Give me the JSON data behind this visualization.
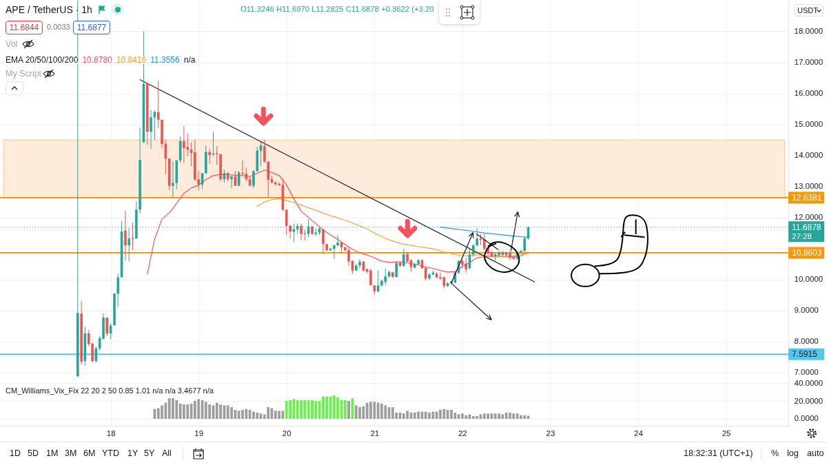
{
  "chart_data": [
    {
      "type": "candlestick",
      "title": "APE / TetherUS · 1h",
      "annotations": [
        "O11.3246 H11.6970 L11.2825 C11.6878 +0.3622 (+3.20",
        "11.6844",
        "0.0033",
        "11.6877",
        "Vol",
        "EMA 20/50/100/200",
        "10.8780",
        "10.8416",
        "11.3556",
        "n/a",
        "My Script",
        "USDT",
        "27:28"
      ],
      "x": [
        17.625,
        17.667,
        17.708,
        17.75,
        17.792,
        17.833,
        17.875,
        17.917,
        17.958,
        18,
        18.042,
        18.083,
        18.125,
        18.167,
        18.208,
        18.25,
        18.292,
        18.333,
        18.375,
        18.417,
        18.458,
        18.5,
        18.542,
        18.583,
        18.625,
        18.667,
        18.708,
        18.75,
        18.792,
        18.833,
        18.875,
        18.917,
        18.958,
        19,
        19.042,
        19.083,
        19.125,
        19.167,
        19.208,
        19.25,
        19.292,
        19.333,
        19.375,
        19.417,
        19.458,
        19.5,
        19.542,
        19.583,
        19.625,
        19.667,
        19.708,
        19.75,
        19.792,
        19.833,
        19.875,
        19.917,
        19.958,
        20,
        20.042,
        20.083,
        20.125,
        20.167,
        20.208,
        20.25,
        20.292,
        20.333,
        20.375,
        20.417,
        20.458,
        20.5,
        20.542,
        20.583,
        20.625,
        20.667,
        20.708,
        20.75,
        20.792,
        20.833,
        20.875,
        20.917,
        20.958,
        21,
        21.042,
        21.083,
        21.125,
        21.167,
        21.208,
        21.25,
        21.292,
        21.333,
        21.375,
        21.417,
        21.458,
        21.5,
        21.542,
        21.583,
        21.625,
        21.667,
        21.708,
        21.75,
        21.792,
        21.833,
        21.875,
        21.917,
        21.958,
        22,
        22.042,
        22.083,
        22.125,
        22.167,
        22.208,
        22.25,
        22.292,
        22.333,
        22.375,
        22.417,
        22.458,
        22.5,
        22.542,
        22.583,
        22.625,
        22.667,
        22.708,
        22.75
      ],
      "ohlc": [
        [
          6.88,
          19.0,
          6.86,
          8.92
        ],
        [
          8.9,
          9.31,
          7.26,
          7.35
        ],
        [
          7.37,
          8.48,
          7.22,
          8.26
        ],
        [
          8.26,
          8.37,
          7.85,
          7.92
        ],
        [
          7.94,
          7.95,
          7.32,
          7.37
        ],
        [
          7.37,
          7.85,
          7.32,
          7.78
        ],
        [
          7.78,
          8.18,
          7.7,
          8.11
        ],
        [
          8.09,
          8.9,
          8.07,
          8.77
        ],
        [
          8.77,
          8.77,
          8.18,
          8.26
        ],
        [
          8.26,
          8.59,
          8.07,
          8.52
        ],
        [
          8.52,
          9.55,
          8.52,
          9.55
        ],
        [
          9.54,
          10.19,
          9.11,
          10.07
        ],
        [
          10.07,
          11.88,
          10.07,
          11.55
        ],
        [
          11.58,
          12.21,
          10.61,
          11.1
        ],
        [
          11.1,
          11.66,
          10.58,
          11.32
        ],
        [
          11.34,
          11.84,
          10.95,
          11.31
        ],
        [
          11.32,
          12.51,
          11.32,
          12.25
        ],
        [
          12.25,
          14.89,
          12.14,
          13.85
        ],
        [
          14.43,
          18.0,
          14.39,
          16.31
        ],
        [
          16.31,
          16.35,
          14.35,
          14.76
        ],
        [
          14.76,
          15.46,
          14.21,
          15.23
        ],
        [
          15.23,
          15.46,
          14.5,
          15.4
        ],
        [
          15.4,
          16.4,
          14.87,
          15.15
        ],
        [
          15.15,
          15.15,
          14.24,
          14.37
        ],
        [
          14.37,
          14.5,
          13.39,
          13.9
        ],
        [
          13.9,
          13.9,
          12.88,
          13.02
        ],
        [
          13.02,
          13.8,
          12.65,
          13.11
        ],
        [
          13.11,
          13.84,
          12.91,
          13.84
        ],
        [
          13.84,
          14.61,
          13.76,
          14.46
        ],
        [
          14.46,
          14.94,
          13.76,
          14.24
        ],
        [
          14.27,
          14.72,
          13.98,
          14.19
        ],
        [
          14.19,
          14.42,
          13.65,
          14.08
        ],
        [
          14.1,
          14.5,
          13.17,
          13.23
        ],
        [
          13.23,
          13.5,
          12.88,
          13.06
        ],
        [
          13.06,
          13.43,
          12.91,
          13.43
        ],
        [
          13.43,
          14.32,
          13.39,
          14.11
        ],
        [
          14.11,
          14.21,
          13.74,
          14.01
        ],
        [
          14.03,
          14.76,
          13.98,
          14.06
        ],
        [
          14.07,
          14.3,
          13.69,
          14.04
        ],
        [
          14.04,
          14.04,
          13.17,
          13.23
        ],
        [
          13.23,
          13.54,
          13.13,
          13.43
        ],
        [
          13.43,
          13.47,
          13.17,
          13.23
        ],
        [
          13.23,
          13.36,
          12.95,
          13.32
        ],
        [
          13.32,
          13.5,
          13.02,
          13.02
        ],
        [
          13.02,
          13.5,
          13.02,
          13.45
        ],
        [
          13.44,
          13.84,
          13.36,
          13.41
        ],
        [
          13.41,
          13.61,
          13.17,
          13.23
        ],
        [
          13.23,
          13.32,
          13.02,
          13.02
        ],
        [
          13.02,
          13.54,
          12.95,
          13.49
        ],
        [
          13.49,
          14.28,
          13.46,
          14.15
        ],
        [
          14.15,
          14.43,
          13.65,
          14.32
        ],
        [
          14.3,
          14.5,
          13.76,
          13.8
        ],
        [
          13.8,
          13.8,
          12.65,
          13.21
        ],
        [
          13.23,
          13.34,
          13.1,
          13.13
        ],
        [
          13.13,
          13.17,
          13.02,
          13.07
        ],
        [
          13.08,
          13.13,
          13.02,
          13.04
        ],
        [
          13.05,
          13.25,
          12.21,
          12.25
        ],
        [
          12.25,
          12.25,
          11.43,
          11.73
        ],
        [
          11.73,
          11.77,
          11.32,
          11.54
        ],
        [
          11.54,
          11.8,
          11.19,
          11.62
        ],
        [
          11.62,
          11.8,
          11.47,
          11.73
        ],
        [
          11.73,
          11.8,
          11.26,
          11.47
        ],
        [
          11.49,
          11.62,
          11.26,
          11.47
        ],
        [
          11.47,
          11.95,
          11.36,
          11.71
        ],
        [
          11.71,
          11.73,
          11.43,
          11.47
        ],
        [
          11.47,
          11.64,
          11.4,
          11.51
        ],
        [
          11.51,
          11.68,
          11.43,
          11.64
        ],
        [
          11.62,
          11.64,
          10.82,
          11.14
        ],
        [
          11.14,
          11.14,
          10.92,
          10.94
        ],
        [
          10.94,
          11.03,
          10.92,
          10.99
        ],
        [
          10.99,
          11.12,
          10.66,
          11.1
        ],
        [
          11.1,
          11.43,
          11.07,
          11.19
        ],
        [
          11.19,
          11.21,
          10.84,
          11.04
        ],
        [
          11.04,
          11.06,
          10.92,
          10.94
        ],
        [
          10.95,
          11.06,
          10.44,
          10.58
        ],
        [
          10.6,
          10.62,
          10.18,
          10.29
        ],
        [
          10.29,
          10.51,
          10.29,
          10.45
        ],
        [
          10.45,
          10.66,
          10.36,
          10.57
        ],
        [
          10.58,
          10.58,
          10.25,
          10.29
        ],
        [
          10.33,
          10.36,
          10.21,
          10.25
        ],
        [
          10.29,
          10.36,
          9.81,
          9.81
        ],
        [
          9.81,
          9.81,
          9.51,
          9.62
        ],
        [
          9.62,
          10.29,
          9.59,
          9.81
        ],
        [
          9.81,
          10.0,
          9.77,
          9.96
        ],
        [
          9.92,
          10.36,
          9.81,
          10.1
        ],
        [
          10.1,
          10.29,
          10.07,
          10.25
        ],
        [
          10.23,
          10.25,
          10.07,
          10.08
        ],
        [
          10.08,
          10.58,
          10.07,
          10.53
        ],
        [
          10.53,
          10.58,
          10.42,
          10.44
        ],
        [
          10.44,
          10.99,
          10.4,
          10.81
        ],
        [
          10.82,
          10.88,
          10.55,
          10.58
        ],
        [
          10.62,
          10.66,
          10.25,
          10.4
        ],
        [
          10.38,
          10.55,
          10.36,
          10.5
        ],
        [
          10.5,
          10.67,
          10.45,
          10.62
        ],
        [
          10.62,
          10.66,
          10.35,
          10.36
        ],
        [
          10.38,
          10.38,
          9.96,
          10.03
        ],
        [
          10.03,
          10.2,
          9.98,
          10.16
        ],
        [
          10.16,
          10.29,
          10.14,
          10.22
        ],
        [
          10.19,
          10.25,
          10.03,
          10.07
        ],
        [
          10.08,
          10.22,
          9.99,
          10.03
        ],
        [
          10.07,
          10.1,
          9.71,
          9.79
        ],
        [
          9.79,
          9.92,
          9.76,
          9.88
        ],
        [
          9.88,
          9.96,
          9.85,
          9.94
        ],
        [
          9.9,
          10.25,
          9.88,
          10.22
        ],
        [
          10.22,
          10.62,
          10.18,
          10.6
        ],
        [
          10.6,
          10.66,
          10.36,
          10.47
        ],
        [
          10.51,
          10.7,
          10.22,
          10.33
        ],
        [
          10.37,
          11.03,
          10.33,
          10.81
        ],
        [
          10.81,
          11.14,
          10.73,
          11.1
        ],
        [
          11.1,
          11.66,
          11.07,
          11.32
        ],
        [
          11.32,
          11.47,
          11.1,
          11.28
        ],
        [
          11.29,
          11.47,
          10.95,
          10.99
        ],
        [
          11.03,
          11.1,
          10.75,
          10.84
        ],
        [
          10.88,
          10.92,
          10.73,
          10.75
        ],
        [
          10.76,
          10.88,
          10.58,
          10.81
        ],
        [
          10.78,
          10.92,
          10.75,
          10.87
        ],
        [
          10.87,
          10.92,
          10.73,
          10.79
        ],
        [
          10.78,
          10.9,
          10.76,
          10.87
        ],
        [
          10.87,
          10.92,
          10.62,
          10.7
        ],
        [
          10.73,
          10.75,
          10.62,
          10.67
        ],
        [
          10.67,
          10.88,
          10.62,
          10.87
        ],
        [
          10.87,
          10.96,
          10.84,
          10.92
        ],
        [
          10.92,
          11.4,
          10.88,
          11.3246
        ],
        [
          11.3246,
          11.697,
          11.2825,
          11.6878
        ]
      ],
      "colors": [
        "#26a69a",
        "#ef5350",
        "#26a69a",
        "#ef5350",
        "#ef5350",
        "#26a69a",
        "#26a69a",
        "#26a69a",
        "#ef5350",
        "#26a69a",
        "#26a69a",
        "#26a69a",
        "#26a69a",
        "#ef5350",
        "#26a69a",
        "#ef5350",
        "#26a69a",
        "#26a69a",
        "#26a69a",
        "#ef5350",
        "#26a69a",
        "#26a69a",
        "#ef5350",
        "#ef5350",
        "#ef5350",
        "#ef5350",
        "#26a69a",
        "#26a69a",
        "#26a69a",
        "#ef5350",
        "#ef5350",
        "#ef5350",
        "#ef5350",
        "#ef5350",
        "#26a69a",
        "#26a69a",
        "#ef5350",
        "#26a69a",
        "#ef5350",
        "#ef5350",
        "#26a69a",
        "#ef5350",
        "#26a69a",
        "#ef5350",
        "#26a69a",
        "#ef5350",
        "#ef5350",
        "#ef5350",
        "#26a69a",
        "#26a69a",
        "#26a69a",
        "#ef5350",
        "#ef5350",
        "#ef5350",
        "#ef5350",
        "#ef5350",
        "#ef5350",
        "#ef5350",
        "#ef5350",
        "#26a69a",
        "#26a69a",
        "#ef5350",
        "#ef5350",
        "#26a69a",
        "#ef5350",
        "#26a69a",
        "#26a69a",
        "#ef5350",
        "#ef5350",
        "#26a69a",
        "#26a69a",
        "#26a69a",
        "#ef5350",
        "#ef5350",
        "#ef5350",
        "#ef5350",
        "#26a69a",
        "#26a69a",
        "#ef5350",
        "#ef5350",
        "#ef5350",
        "#ef5350",
        "#26a69a",
        "#26a69a",
        "#26a69a",
        "#26a69a",
        "#ef5350",
        "#26a69a",
        "#ef5350",
        "#26a69a",
        "#ef5350",
        "#ef5350",
        "#26a69a",
        "#26a69a",
        "#ef5350",
        "#ef5350",
        "#26a69a",
        "#26a69a",
        "#ef5350",
        "#ef5350",
        "#ef5350",
        "#26a69a",
        "#26a69a",
        "#26a69a",
        "#26a69a",
        "#ef5350",
        "#ef5350",
        "#26a69a",
        "#26a69a",
        "#26a69a",
        "#ef5350",
        "#ef5350",
        "#ef5350",
        "#ef5350",
        "#26a69a",
        "#26a69a",
        "#ef5350",
        "#26a69a",
        "#ef5350",
        "#ef5350",
        "#26a69a",
        "#26a69a",
        "#26a69a",
        "#26a69a"
      ],
      "series": [
        {
          "type": "line",
          "color": "#f7525f",
          "x": [
            18.417,
            18.5,
            18.583,
            18.667,
            18.75,
            18.833,
            18.917,
            19,
            19.083,
            19.167,
            19.25,
            19.333,
            19.417,
            19.5,
            19.583,
            19.667,
            19.75,
            19.833,
            19.917,
            20,
            20.083,
            20.167,
            20.25,
            20.333,
            20.417,
            20.5,
            20.583,
            20.667,
            20.75,
            20.833,
            20.917,
            21,
            21.083,
            21.167,
            21.25,
            21.333,
            21.417,
            21.5,
            21.583,
            21.667,
            21.75,
            21.833,
            21.917,
            22,
            22.083,
            22.167,
            22.25,
            22.333,
            22.417,
            22.5,
            22.583,
            22.667,
            22.75
          ],
          "values": [
            10.18,
            11.3,
            11.95,
            12.15,
            12.45,
            12.78,
            12.95,
            13.04,
            13.22,
            13.35,
            13.39,
            13.39,
            13.36,
            13.35,
            13.32,
            13.42,
            13.53,
            13.45,
            13.35,
            13.05,
            12.6,
            12.2,
            12.0,
            11.8,
            11.6,
            11.44,
            11.29,
            11.13,
            10.97,
            10.86,
            10.79,
            10.7,
            10.59,
            10.55,
            10.57,
            10.56,
            10.51,
            10.47,
            10.4,
            10.36,
            10.29,
            10.24,
            10.25,
            10.42,
            10.55,
            10.7,
            10.73,
            10.75,
            10.75,
            10.73,
            10.73,
            10.76,
            10.88
          ]
        },
        {
          "type": "line",
          "color": "#ff9f40",
          "x": [
            19.667,
            19.75,
            19.833,
            19.917,
            20,
            20.083,
            20.167,
            20.25,
            20.333,
            20.417,
            20.5,
            20.583,
            20.667,
            20.75,
            20.833,
            20.917,
            21,
            21.083,
            21.167,
            21.25,
            21.333,
            21.417,
            21.5,
            21.583,
            21.667,
            21.75,
            21.833,
            21.917,
            22,
            22.083,
            22.167,
            22.25,
            22.333,
            22.417,
            22.5,
            22.583,
            22.667,
            22.75
          ],
          "values": [
            12.36,
            12.5,
            12.58,
            12.6,
            12.55,
            12.48,
            12.4,
            12.31,
            12.24,
            12.14,
            12.06,
            11.99,
            11.91,
            11.82,
            11.73,
            11.63,
            11.5,
            11.38,
            11.28,
            11.2,
            11.14,
            11.1,
            11.06,
            11.03,
            10.99,
            10.92,
            10.86,
            10.81,
            10.76,
            10.77,
            10.8,
            10.77,
            10.73,
            10.73,
            10.75,
            10.77,
            10.81,
            10.84
          ]
        },
        {
          "type": "line",
          "color": "#2196f3",
          "x": [
            21.75,
            21.917,
            22.083,
            22.25,
            22.417,
            22.583,
            22.75
          ],
          "values": [
            11.69,
            11.63,
            11.57,
            11.5,
            11.45,
            11.4,
            11.36
          ]
        },
        {
          "type": "line",
          "color": "#2a2e39",
          "x": [
            18.334,
            22.823
          ],
          "values": [
            16.44,
            9.92
          ]
        }
      ],
      "ref_lines": [
        {
          "axis": "y",
          "value": 12.6381,
          "label": "12.6381",
          "color": "#ff9800"
        },
        {
          "axis": "y",
          "value": 10.8603,
          "label": "10.8603",
          "color": "#ff9800"
        },
        {
          "axis": "y",
          "value": 7.5915,
          "label": "7.5915",
          "color": "#53c7ee"
        },
        {
          "axis": "y",
          "value": 11.6878,
          "label": "11.6878",
          "color": "#26a69a",
          "line_style": "dotted"
        }
      ],
      "bands": [
        {
          "axis": "y",
          "from": 12.6381,
          "to": 14.5,
          "color": "#fdebdb"
        }
      ],
      "xlim": [
        16.78,
        25.67
      ],
      "ylim": [
        6.84,
        19.01
      ],
      "xticks": [
        18,
        19,
        20,
        21,
        22,
        23,
        24,
        25
      ],
      "yticks": [
        {
          "value": 7,
          "label": "7.0000"
        },
        {
          "value": 8,
          "label": "8.0000"
        },
        {
          "value": 9,
          "label": "9.0000"
        },
        {
          "value": 10,
          "label": "10.0000"
        },
        {
          "value": 11,
          "label": null
        },
        {
          "value": 12,
          "label": "12.0000"
        },
        {
          "value": 13,
          "label": "13.0000"
        },
        {
          "value": 14,
          "label": "14.0000"
        },
        {
          "value": 15,
          "label": "15.0000"
        },
        {
          "value": 16,
          "label": "16.0000"
        },
        {
          "value": 17,
          "label": "17.0000"
        },
        {
          "value": 18,
          "label": "18.0000"
        }
      ],
      "grid": true,
      "tick_labels": "y"
    },
    {
      "type": "bar",
      "title": "CM_Williams_Vix_Fix 22 20 2 50 0.85 1.01 n/a n/a 3.4677 n/a",
      "annotations": [
        "1D",
        "5D",
        "1M",
        "3M",
        "6M",
        "YTD",
        "1Y",
        "5Y",
        "All",
        "18:32:31 (UTC+1)",
        "%",
        "log",
        "auto"
      ],
      "x": [
        18.5,
        18.542,
        18.583,
        18.625,
        18.667,
        18.708,
        18.75,
        18.792,
        18.833,
        18.875,
        18.917,
        18.958,
        19,
        19.042,
        19.083,
        19.125,
        19.167,
        19.208,
        19.25,
        19.292,
        19.333,
        19.375,
        19.417,
        19.458,
        19.5,
        19.542,
        19.583,
        19.625,
        19.667,
        19.708,
        19.75,
        19.792,
        19.833,
        19.875,
        19.917,
        19.958,
        20,
        20.042,
        20.083,
        20.125,
        20.167,
        20.208,
        20.25,
        20.292,
        20.333,
        20.375,
        20.417,
        20.458,
        20.5,
        20.542,
        20.583,
        20.625,
        20.667,
        20.708,
        20.75,
        20.792,
        20.833,
        20.875,
        20.917,
        20.958,
        21,
        21.042,
        21.083,
        21.125,
        21.167,
        21.208,
        21.25,
        21.292,
        21.333,
        21.375,
        21.417,
        21.458,
        21.5,
        21.542,
        21.583,
        21.625,
        21.667,
        21.708,
        21.75,
        21.792,
        21.833,
        21.875,
        21.917,
        21.958,
        22,
        22.042,
        22.083,
        22.125,
        22.167,
        22.208,
        22.25,
        22.292,
        22.333,
        22.375,
        22.417,
        22.458,
        22.5,
        22.542,
        22.583,
        22.625,
        22.667,
        22.708,
        22.75
      ],
      "values": [
        11,
        12,
        15,
        18,
        23,
        23,
        21,
        17,
        16,
        16,
        17,
        20,
        22,
        21,
        19,
        16,
        15,
        18,
        16,
        15,
        15,
        13,
        10,
        9,
        10,
        11,
        10,
        8,
        7,
        6,
        5,
        13,
        12,
        9,
        9,
        9,
        20,
        21,
        22,
        21,
        21,
        21,
        21,
        21,
        20,
        20,
        25,
        25,
        25,
        26,
        24,
        21,
        21,
        20,
        23,
        15,
        13,
        14,
        18,
        19,
        19,
        18,
        17,
        15,
        13,
        13,
        7,
        7,
        6,
        9,
        7,
        7,
        8,
        8,
        8,
        7,
        8,
        8,
        10,
        11,
        10,
        10,
        7,
        5,
        6,
        4,
        5,
        3,
        3,
        5,
        6,
        6,
        6,
        6,
        6,
        5,
        7,
        7,
        6,
        6,
        4,
        4,
        3.5
      ],
      "colors": [
        "#9e9e9e",
        "#9e9e9e",
        "#9e9e9e",
        "#9e9e9e",
        "#9e9e9e",
        "#9e9e9e",
        "#9e9e9e",
        "#9e9e9e",
        "#9e9e9e",
        "#9e9e9e",
        "#9e9e9e",
        "#9e9e9e",
        "#9e9e9e",
        "#9e9e9e",
        "#9e9e9e",
        "#9e9e9e",
        "#9e9e9e",
        "#9e9e9e",
        "#9e9e9e",
        "#9e9e9e",
        "#9e9e9e",
        "#9e9e9e",
        "#9e9e9e",
        "#9e9e9e",
        "#9e9e9e",
        "#9e9e9e",
        "#9e9e9e",
        "#9e9e9e",
        "#9e9e9e",
        "#9e9e9e",
        "#9e9e9e",
        "#9e9e9e",
        "#9e9e9e",
        "#9e9e9e",
        "#9e9e9e",
        "#9e9e9e",
        "#69f24a",
        "#69f24a",
        "#69f24a",
        "#69f24a",
        "#69f24a",
        "#69f24a",
        "#69f24a",
        "#69f24a",
        "#69f24a",
        "#69f24a",
        "#69f24a",
        "#69f24a",
        "#69f24a",
        "#69f24a",
        "#69f24a",
        "#69f24a",
        "#69f24a",
        "#9e9e9e",
        "#69f24a",
        "#9e9e9e",
        "#9e9e9e",
        "#9e9e9e",
        "#9e9e9e",
        "#9e9e9e",
        "#9e9e9e",
        "#9e9e9e",
        "#9e9e9e",
        "#9e9e9e",
        "#9e9e9e",
        "#9e9e9e",
        "#9e9e9e",
        "#9e9e9e",
        "#9e9e9e",
        "#9e9e9e",
        "#9e9e9e",
        "#9e9e9e",
        "#9e9e9e",
        "#9e9e9e",
        "#9e9e9e",
        "#9e9e9e",
        "#9e9e9e",
        "#9e9e9e",
        "#9e9e9e",
        "#9e9e9e",
        "#9e9e9e",
        "#9e9e9e",
        "#9e9e9e",
        "#9e9e9e",
        "#9e9e9e",
        "#9e9e9e",
        "#9e9e9e",
        "#9e9e9e",
        "#9e9e9e",
        "#9e9e9e",
        "#9e9e9e",
        "#9e9e9e",
        "#9e9e9e",
        "#9e9e9e",
        "#9e9e9e",
        "#9e9e9e",
        "#9e9e9e",
        "#9e9e9e",
        "#9e9e9e",
        "#9e9e9e",
        "#9e9e9e",
        "#9e9e9e",
        "#9e9e9e"
      ],
      "xlim": [
        16.78,
        25.67
      ],
      "ylim": [
        -7.7,
        45.4
      ],
      "xticks": [
        18,
        19,
        20,
        21,
        22,
        23,
        24,
        25
      ],
      "yticks": [
        {
          "value": 0,
          "label": "0.0000"
        },
        {
          "value": 20,
          "label": "20.0000"
        },
        {
          "value": 40,
          "label": "40.0000"
        }
      ],
      "grid": true
    }
  ]
}
